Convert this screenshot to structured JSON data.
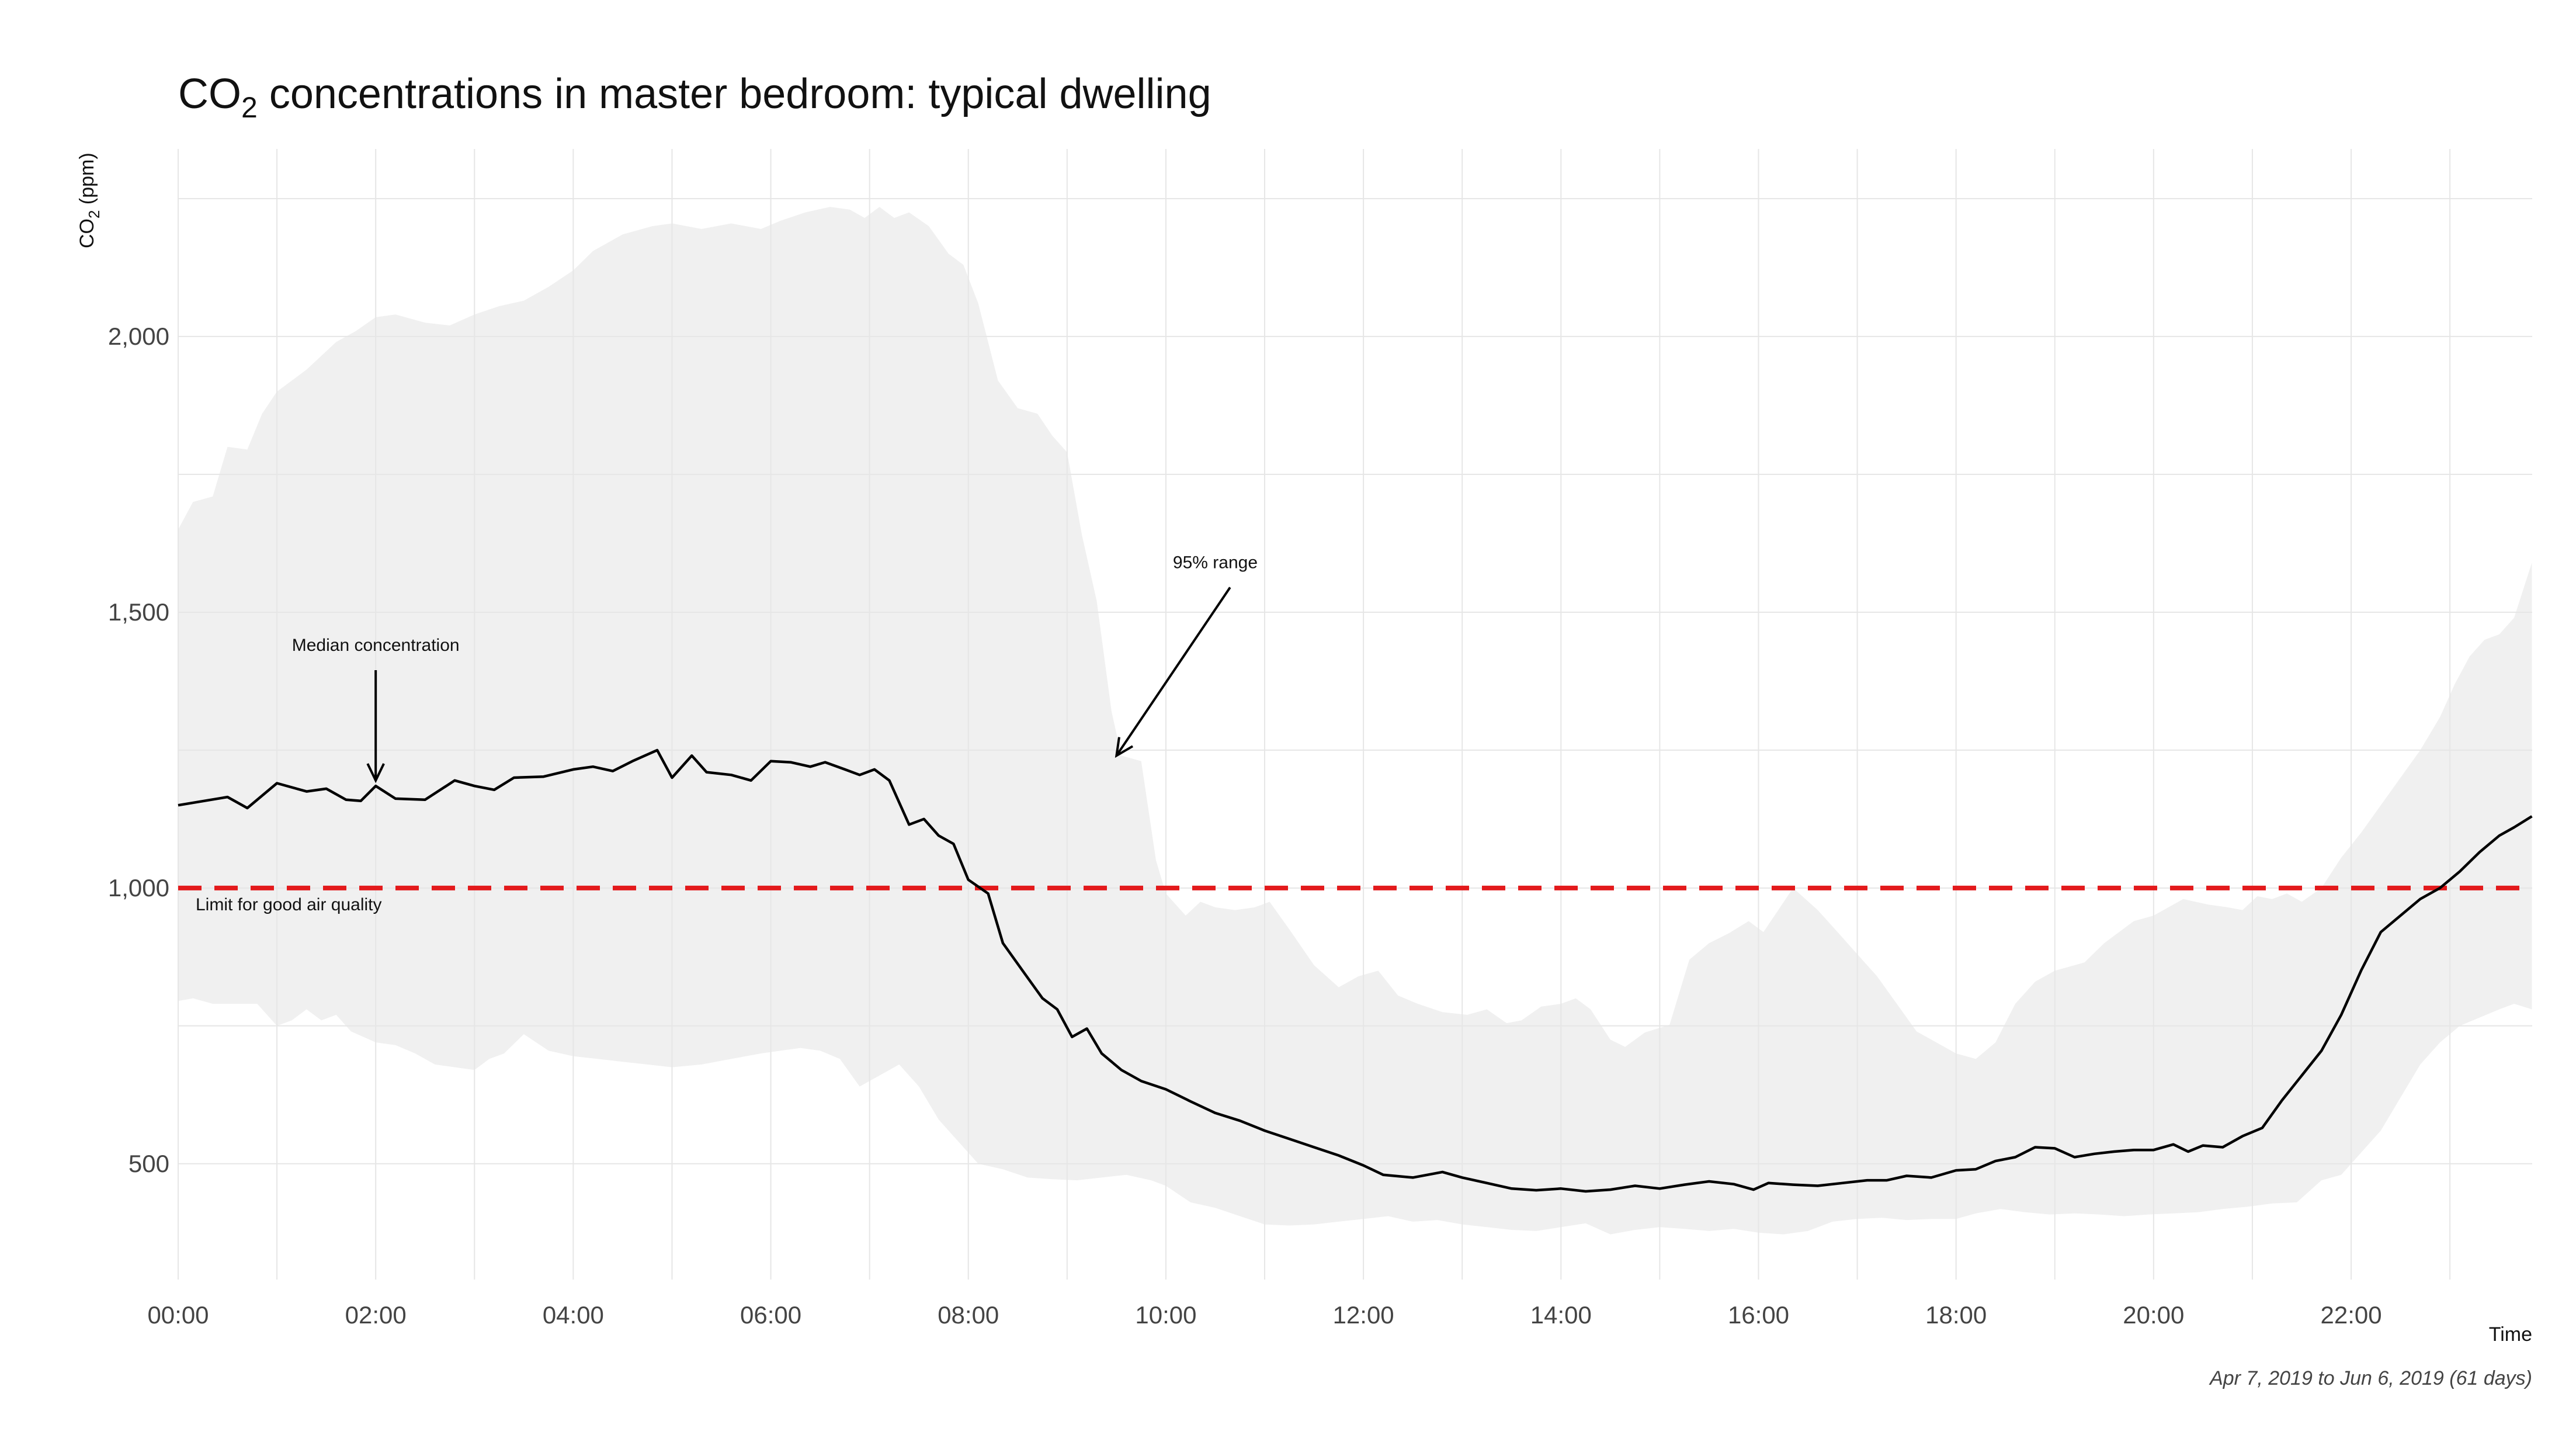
{
  "chart_data": {
    "type": "line",
    "title": {
      "prefix": "CO",
      "subscript": "2",
      "rest": " concentrations in master bedroom: typical dwelling"
    },
    "ylabel": {
      "prefix": "CO",
      "subscript": "2",
      "rest": " (ppm)"
    },
    "xlabel": "Time",
    "caption": "Apr  7, 2019 to Jun  6, 2019 (61 days)",
    "x_unit": "hours",
    "xlim": [
      0,
      23.833
    ],
    "ylim": [
      290,
      2340
    ],
    "x_ticks": [
      {
        "value": 0,
        "label": "00:00"
      },
      {
        "value": 2,
        "label": "02:00"
      },
      {
        "value": 4,
        "label": "04:00"
      },
      {
        "value": 6,
        "label": "06:00"
      },
      {
        "value": 8,
        "label": "08:00"
      },
      {
        "value": 10,
        "label": "10:00"
      },
      {
        "value": 12,
        "label": "12:00"
      },
      {
        "value": 14,
        "label": "14:00"
      },
      {
        "value": 16,
        "label": "16:00"
      },
      {
        "value": 18,
        "label": "18:00"
      },
      {
        "value": 20,
        "label": "20:00"
      },
      {
        "value": 22,
        "label": "22:00"
      }
    ],
    "y_ticks": [
      {
        "value": 500,
        "label": "500"
      },
      {
        "value": 1000,
        "label": "1,000"
      },
      {
        "value": 1500,
        "label": "1,500"
      },
      {
        "value": 2000,
        "label": "2,000"
      }
    ],
    "grid": true,
    "median": [
      [
        0,
        1150
      ],
      [
        0.5,
        1165
      ],
      [
        0.7,
        1145
      ],
      [
        1,
        1190
      ],
      [
        1.3,
        1175
      ],
      [
        1.5,
        1180
      ],
      [
        1.7,
        1160
      ],
      [
        1.85,
        1158
      ],
      [
        2,
        1185
      ],
      [
        2.2,
        1162
      ],
      [
        2.5,
        1160
      ],
      [
        2.8,
        1195
      ],
      [
        3,
        1185
      ],
      [
        3.2,
        1178
      ],
      [
        3.4,
        1200
      ],
      [
        3.7,
        1202
      ],
      [
        4,
        1215
      ],
      [
        4.2,
        1220
      ],
      [
        4.4,
        1212
      ],
      [
        4.6,
        1230
      ],
      [
        4.85,
        1250
      ],
      [
        5,
        1200
      ],
      [
        5.2,
        1240
      ],
      [
        5.35,
        1210
      ],
      [
        5.6,
        1205
      ],
      [
        5.8,
        1195
      ],
      [
        6,
        1230
      ],
      [
        6.2,
        1228
      ],
      [
        6.4,
        1220
      ],
      [
        6.55,
        1228
      ],
      [
        6.75,
        1215
      ],
      [
        6.9,
        1205
      ],
      [
        7.05,
        1215
      ],
      [
        7.2,
        1195
      ],
      [
        7.4,
        1115
      ],
      [
        7.55,
        1125
      ],
      [
        7.7,
        1095
      ],
      [
        7.85,
        1080
      ],
      [
        8,
        1015
      ],
      [
        8.2,
        990
      ],
      [
        8.35,
        900
      ],
      [
        8.55,
        850
      ],
      [
        8.75,
        800
      ],
      [
        8.9,
        780
      ],
      [
        9.05,
        730
      ],
      [
        9.2,
        745
      ],
      [
        9.35,
        700
      ],
      [
        9.55,
        670
      ],
      [
        9.75,
        650
      ],
      [
        10,
        635
      ],
      [
        10.25,
        613
      ],
      [
        10.5,
        592
      ],
      [
        10.75,
        578
      ],
      [
        11,
        560
      ],
      [
        11.25,
        545
      ],
      [
        11.5,
        530
      ],
      [
        11.75,
        515
      ],
      [
        12,
        497
      ],
      [
        12.2,
        480
      ],
      [
        12.5,
        475
      ],
      [
        12.8,
        485
      ],
      [
        13,
        475
      ],
      [
        13.25,
        465
      ],
      [
        13.5,
        455
      ],
      [
        13.75,
        452
      ],
      [
        14,
        455
      ],
      [
        14.25,
        450
      ],
      [
        14.5,
        453
      ],
      [
        14.75,
        460
      ],
      [
        15,
        455
      ],
      [
        15.25,
        462
      ],
      [
        15.5,
        468
      ],
      [
        15.75,
        463
      ],
      [
        15.95,
        453
      ],
      [
        16.1,
        465
      ],
      [
        16.35,
        462
      ],
      [
        16.6,
        460
      ],
      [
        16.85,
        465
      ],
      [
        17.1,
        470
      ],
      [
        17.3,
        470
      ],
      [
        17.5,
        478
      ],
      [
        17.75,
        475
      ],
      [
        18,
        488
      ],
      [
        18.2,
        490
      ],
      [
        18.4,
        505
      ],
      [
        18.6,
        512
      ],
      [
        18.8,
        530
      ],
      [
        19,
        528
      ],
      [
        19.2,
        512
      ],
      [
        19.4,
        518
      ],
      [
        19.6,
        522
      ],
      [
        19.8,
        525
      ],
      [
        20,
        525
      ],
      [
        20.2,
        535
      ],
      [
        20.35,
        522
      ],
      [
        20.5,
        533
      ],
      [
        20.7,
        530
      ],
      [
        20.9,
        550
      ],
      [
        21.1,
        565
      ],
      [
        21.3,
        615
      ],
      [
        21.5,
        660
      ],
      [
        21.7,
        705
      ],
      [
        21.9,
        770
      ],
      [
        22.1,
        850
      ],
      [
        22.3,
        920
      ],
      [
        22.5,
        950
      ],
      [
        22.7,
        980
      ],
      [
        22.9,
        1000
      ],
      [
        23.1,
        1030
      ],
      [
        23.3,
        1065
      ],
      [
        23.5,
        1095
      ],
      [
        23.65,
        1110
      ],
      [
        23.83,
        1130
      ]
    ],
    "band_upper": [
      [
        0,
        1650
      ],
      [
        0.15,
        1700
      ],
      [
        0.35,
        1710
      ],
      [
        0.5,
        1800
      ],
      [
        0.7,
        1795
      ],
      [
        0.85,
        1860
      ],
      [
        1,
        1900
      ],
      [
        1.3,
        1940
      ],
      [
        1.6,
        1990
      ],
      [
        1.8,
        2010
      ],
      [
        2,
        2035
      ],
      [
        2.2,
        2040
      ],
      [
        2.5,
        2025
      ],
      [
        2.75,
        2020
      ],
      [
        3,
        2040
      ],
      [
        3.25,
        2055
      ],
      [
        3.5,
        2065
      ],
      [
        3.75,
        2090
      ],
      [
        4,
        2120
      ],
      [
        4.2,
        2155
      ],
      [
        4.5,
        2185
      ],
      [
        4.8,
        2200
      ],
      [
        5,
        2205
      ],
      [
        5.3,
        2195
      ],
      [
        5.6,
        2205
      ],
      [
        5.9,
        2195
      ],
      [
        6.1,
        2210
      ],
      [
        6.35,
        2225
      ],
      [
        6.6,
        2235
      ],
      [
        6.8,
        2230
      ],
      [
        6.95,
        2215
      ],
      [
        7.1,
        2235
      ],
      [
        7.25,
        2215
      ],
      [
        7.4,
        2225
      ],
      [
        7.6,
        2200
      ],
      [
        7.8,
        2150
      ],
      [
        7.95,
        2130
      ],
      [
        8.1,
        2060
      ],
      [
        8.3,
        1920
      ],
      [
        8.5,
        1870
      ],
      [
        8.7,
        1860
      ],
      [
        8.85,
        1820
      ],
      [
        9,
        1790
      ],
      [
        9.15,
        1640
      ],
      [
        9.3,
        1520
      ],
      [
        9.45,
        1320
      ],
      [
        9.55,
        1240
      ],
      [
        9.75,
        1230
      ],
      [
        9.9,
        1050
      ],
      [
        10,
        990
      ],
      [
        10.2,
        950
      ],
      [
        10.35,
        975
      ],
      [
        10.5,
        965
      ],
      [
        10.7,
        960
      ],
      [
        10.9,
        965
      ],
      [
        11.05,
        975
      ],
      [
        11.25,
        925
      ],
      [
        11.5,
        860
      ],
      [
        11.75,
        820
      ],
      [
        11.95,
        840
      ],
      [
        12.15,
        850
      ],
      [
        12.35,
        805
      ],
      [
        12.55,
        790
      ],
      [
        12.8,
        775
      ],
      [
        13.05,
        770
      ],
      [
        13.25,
        780
      ],
      [
        13.45,
        755
      ],
      [
        13.6,
        760
      ],
      [
        13.8,
        785
      ],
      [
        14,
        790
      ],
      [
        14.15,
        800
      ],
      [
        14.3,
        780
      ],
      [
        14.5,
        725
      ],
      [
        14.65,
        712
      ],
      [
        14.85,
        738
      ],
      [
        15.1,
        752
      ],
      [
        15.3,
        870
      ],
      [
        15.5,
        900
      ],
      [
        15.7,
        918
      ],
      [
        15.9,
        940
      ],
      [
        16.05,
        920
      ],
      [
        16.2,
        960
      ],
      [
        16.35,
        1000
      ],
      [
        16.6,
        960
      ],
      [
        16.8,
        920
      ],
      [
        17,
        880
      ],
      [
        17.2,
        840
      ],
      [
        17.4,
        790
      ],
      [
        17.6,
        740
      ],
      [
        17.8,
        720
      ],
      [
        18,
        700
      ],
      [
        18.2,
        690
      ],
      [
        18.4,
        720
      ],
      [
        18.6,
        790
      ],
      [
        18.8,
        830
      ],
      [
        19,
        850
      ],
      [
        19.3,
        865
      ],
      [
        19.5,
        900
      ],
      [
        19.8,
        940
      ],
      [
        20,
        950
      ],
      [
        20.3,
        980
      ],
      [
        20.55,
        970
      ],
      [
        20.75,
        965
      ],
      [
        20.9,
        960
      ],
      [
        21.05,
        985
      ],
      [
        21.2,
        980
      ],
      [
        21.35,
        990
      ],
      [
        21.5,
        975
      ],
      [
        21.7,
        1000
      ],
      [
        21.9,
        1055
      ],
      [
        22.1,
        1100
      ],
      [
        22.3,
        1150
      ],
      [
        22.5,
        1200
      ],
      [
        22.7,
        1250
      ],
      [
        22.9,
        1310
      ],
      [
        23.05,
        1370
      ],
      [
        23.2,
        1420
      ],
      [
        23.35,
        1450
      ],
      [
        23.5,
        1460
      ],
      [
        23.65,
        1490
      ],
      [
        23.83,
        1590
      ]
    ],
    "band_lower": [
      [
        0,
        795
      ],
      [
        0.15,
        800
      ],
      [
        0.35,
        790
      ],
      [
        0.6,
        790
      ],
      [
        0.8,
        790
      ],
      [
        1,
        750
      ],
      [
        1.15,
        760
      ],
      [
        1.3,
        780
      ],
      [
        1.45,
        760
      ],
      [
        1.6,
        770
      ],
      [
        1.75,
        740
      ],
      [
        2,
        720
      ],
      [
        2.2,
        715
      ],
      [
        2.4,
        700
      ],
      [
        2.6,
        680
      ],
      [
        2.8,
        675
      ],
      [
        3,
        670
      ],
      [
        3.15,
        690
      ],
      [
        3.3,
        700
      ],
      [
        3.5,
        735
      ],
      [
        3.75,
        705
      ],
      [
        4,
        695
      ],
      [
        4.25,
        690
      ],
      [
        4.5,
        685
      ],
      [
        4.75,
        680
      ],
      [
        5,
        675
      ],
      [
        5.3,
        680
      ],
      [
        5.6,
        690
      ],
      [
        5.9,
        700
      ],
      [
        6.1,
        705
      ],
      [
        6.3,
        710
      ],
      [
        6.5,
        705
      ],
      [
        6.7,
        690
      ],
      [
        6.9,
        640
      ],
      [
        7.1,
        660
      ],
      [
        7.3,
        680
      ],
      [
        7.5,
        640
      ],
      [
        7.7,
        580
      ],
      [
        7.9,
        540
      ],
      [
        8.1,
        500
      ],
      [
        8.35,
        490
      ],
      [
        8.6,
        475
      ],
      [
        8.85,
        472
      ],
      [
        9.1,
        470
      ],
      [
        9.35,
        475
      ],
      [
        9.6,
        480
      ],
      [
        9.85,
        470
      ],
      [
        10,
        460
      ],
      [
        10.25,
        430
      ],
      [
        10.5,
        420
      ],
      [
        10.75,
        405
      ],
      [
        11,
        390
      ],
      [
        11.25,
        388
      ],
      [
        11.5,
        390
      ],
      [
        11.75,
        395
      ],
      [
        12,
        400
      ],
      [
        12.25,
        405
      ],
      [
        12.5,
        395
      ],
      [
        12.75,
        398
      ],
      [
        13,
        390
      ],
      [
        13.25,
        385
      ],
      [
        13.5,
        380
      ],
      [
        13.75,
        378
      ],
      [
        14,
        385
      ],
      [
        14.25,
        392
      ],
      [
        14.5,
        372
      ],
      [
        14.75,
        380
      ],
      [
        15,
        385
      ],
      [
        15.25,
        382
      ],
      [
        15.5,
        378
      ],
      [
        15.75,
        382
      ],
      [
        16,
        375
      ],
      [
        16.25,
        372
      ],
      [
        16.5,
        378
      ],
      [
        16.75,
        395
      ],
      [
        17,
        400
      ],
      [
        17.25,
        402
      ],
      [
        17.5,
        398
      ],
      [
        17.75,
        400
      ],
      [
        18,
        400
      ],
      [
        18.2,
        410
      ],
      [
        18.45,
        418
      ],
      [
        18.7,
        412
      ],
      [
        18.95,
        408
      ],
      [
        19.2,
        410
      ],
      [
        19.45,
        408
      ],
      [
        19.7,
        405
      ],
      [
        19.95,
        408
      ],
      [
        20.2,
        410
      ],
      [
        20.45,
        412
      ],
      [
        20.7,
        418
      ],
      [
        20.95,
        422
      ],
      [
        21.2,
        428
      ],
      [
        21.45,
        430
      ],
      [
        21.7,
        470
      ],
      [
        21.9,
        480
      ],
      [
        22.1,
        520
      ],
      [
        22.3,
        560
      ],
      [
        22.5,
        620
      ],
      [
        22.7,
        680
      ],
      [
        22.9,
        720
      ],
      [
        23.1,
        750
      ],
      [
        23.3,
        765
      ],
      [
        23.5,
        780
      ],
      [
        23.65,
        790
      ],
      [
        23.83,
        780
      ]
    ],
    "reference_line": {
      "value": 1000,
      "label": "Limit for good air quality",
      "color": "#e31a1c"
    },
    "annotations": [
      {
        "label": "Median concentration",
        "x": 2.0,
        "y": 1430,
        "arrow_from": [
          2.0,
          1395
        ],
        "arrow_to": [
          2.0,
          1195
        ]
      },
      {
        "label": "95% range",
        "x": 10.5,
        "y": 1580,
        "arrow_from": [
          10.65,
          1545
        ],
        "arrow_to": [
          9.5,
          1240
        ]
      }
    ],
    "colors": {
      "median": "#000000",
      "band": "#f0f0f0",
      "grid": "#e6e6e6"
    }
  }
}
